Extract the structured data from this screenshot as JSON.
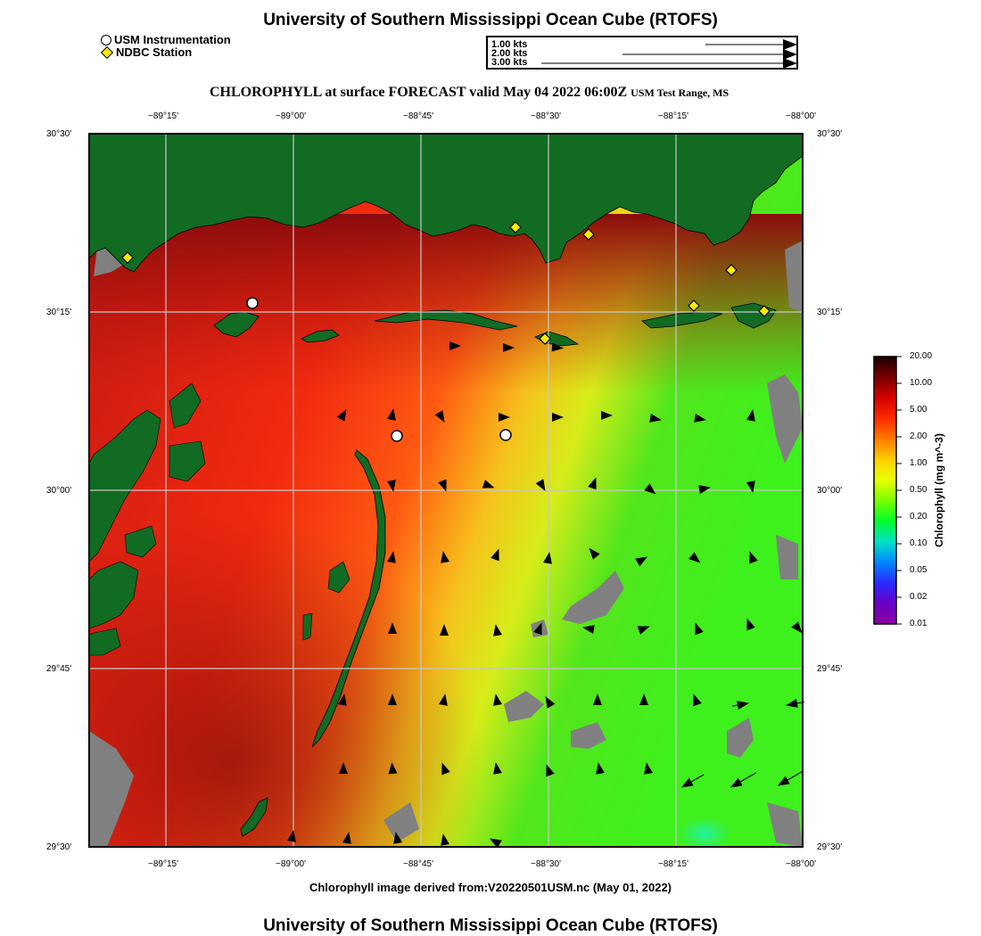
{
  "header": {
    "title": "University of Southern Mississippi Ocean Cube (RTOFS)",
    "subtitle_main": "CHLOROPHYLL at surface FORECAST valid May 04 2022 06:00Z",
    "subtitle_region": "USM Test Range, MS"
  },
  "legend": {
    "usm_label": "USM Instrumentation",
    "ndbc_label": "NDBC Station"
  },
  "vector_reference": {
    "labels": [
      "1.00 kts",
      "2.00 kts",
      "3.00 kts"
    ]
  },
  "axes": {
    "x_ticks": [
      "−89°15'",
      "−89°00'",
      "−88°45'",
      "−88°30'",
      "−88°15'",
      "−88°00'"
    ],
    "y_ticks": [
      "30°30'",
      "30°15'",
      "30°00'",
      "29°45'",
      "29°30'"
    ]
  },
  "colorbar": {
    "title": "Chlorophyll (mg m^-3)",
    "labels": [
      "20.00",
      "10.00",
      "5.00",
      "2.00",
      "1.00",
      "0.50",
      "0.20",
      "0.10",
      "0.05",
      "0.02",
      "0.01"
    ],
    "colors": [
      "#1a0000",
      "#7a0000",
      "#d40000",
      "#ff2a00",
      "#ff7a00",
      "#ffd000",
      "#e8ff00",
      "#7aff00",
      "#00ff2a",
      "#00e0c8",
      "#0088ff",
      "#2a2aff",
      "#6a00c8",
      "#8a00a0"
    ]
  },
  "colors": {
    "land": "#126b22",
    "no_data": "#808080",
    "chl_high": "#b81410",
    "chl_mid": "#ff3010",
    "chl_low": "#f2d41a",
    "chl_lowest": "#3ee81a"
  },
  "footer": {
    "source": "Chlorophyll image derived from:V20220501USM.nc (May 01, 2022)",
    "title": "University of Southern Mississippi Ocean Cube (RTOFS)"
  }
}
